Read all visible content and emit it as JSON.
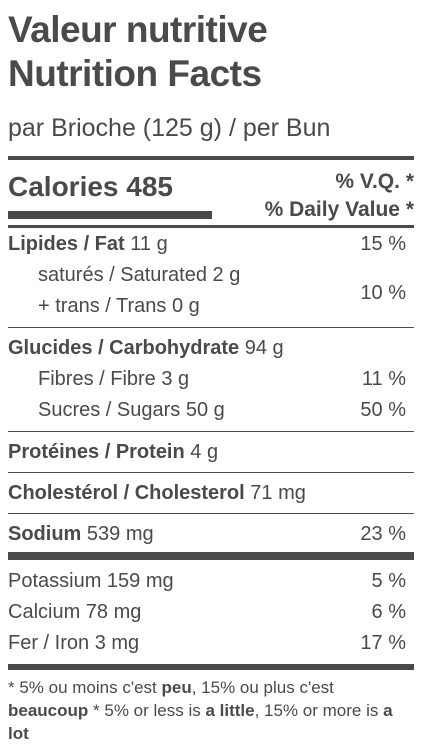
{
  "header": {
    "title_fr": "Valeur nutritive",
    "title_en": "Nutrition Facts",
    "serving": "par Brioche (125 g) / per Bun"
  },
  "calories": {
    "label": "Calories 485",
    "dv_fr": "% V.Q. *",
    "dv_en": "% Daily Value *"
  },
  "fat": {
    "label": "Lipides / Fat",
    "amount": "11 g",
    "dv": "15 %",
    "saturated": "saturés / Saturated 2 g",
    "trans": "+ trans / Trans 0 g",
    "sat_trans_dv": "10 %"
  },
  "carbs": {
    "label": "Glucides / Carbohydrate",
    "amount": "94 g",
    "fibre": "Fibres / Fibre 3 g",
    "fibre_dv": "11 %",
    "sugars": "Sucres / Sugars 50 g",
    "sugars_dv": "50 %"
  },
  "protein": {
    "label": "Protéines / Protein",
    "amount": "4 g"
  },
  "cholesterol": {
    "label": "Cholestérol / Cholesterol",
    "amount": "71 mg"
  },
  "sodium": {
    "label": "Sodium",
    "amount": "539 mg",
    "dv": "23 %"
  },
  "minerals": [
    {
      "label": "Potassium 159 mg",
      "dv": "5 %"
    },
    {
      "label": "Calcium 78 mg",
      "dv": "6 %"
    },
    {
      "label": "Fer / Iron 3 mg",
      "dv": "17 %"
    }
  ],
  "footnote": {
    "p1": "* 5% ou moins c'est ",
    "peu": "peu",
    "p2": ", 15% ou plus c'est ",
    "beaucoup": "beaucoup",
    "p3": "  * 5% or less is ",
    "little": "a little",
    "p4": ", 15% or more is ",
    "lot": "a lot"
  },
  "colors": {
    "ink": "#4a4a4a",
    "background": "#ffffff"
  }
}
